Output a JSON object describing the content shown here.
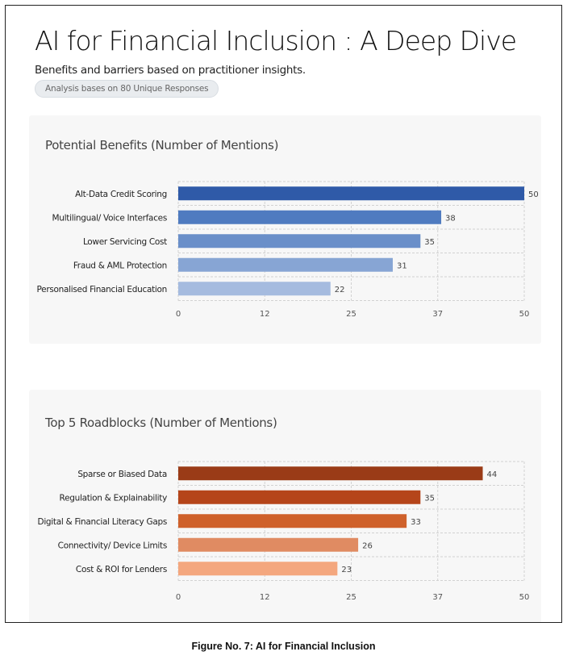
{
  "header": {
    "title": "AI for Financial Inclusion : A Deep Dive",
    "subtitle": "Benefits and barriers based on practitioner insights.",
    "badge": "Analysis bases on 80 Unique Responses"
  },
  "caption": "Figure No. 7: AI for Financial Inclusion",
  "chart_data": [
    {
      "type": "bar",
      "orientation": "horizontal",
      "title": "Potential Benefits (Number of Mentions)",
      "categories": [
        "Alt-Data Credit Scoring",
        "Multilingual/ Voice Interfaces",
        "Lower Servicing Cost",
        "Fraud & AML Protection",
        "Personalised Financial Education"
      ],
      "values": [
        50,
        38,
        35,
        31,
        22
      ],
      "colors": [
        "#2f5aa8",
        "#4f7bc0",
        "#6a8fc9",
        "#87a5d4",
        "#a5bbdf"
      ],
      "xlim": [
        0,
        50
      ],
      "ticks": [
        "0",
        "12",
        "25",
        "37",
        "50"
      ],
      "grid": true
    },
    {
      "type": "bar",
      "orientation": "horizontal",
      "title": "Top 5 Roadblocks (Number of Mentions)",
      "categories": [
        "Sparse or Biased Data",
        "Regulation & Explainability",
        "Digital & Financial Literacy Gaps",
        "Connectivity/ Device Limits",
        "Cost & ROI for Lenders"
      ],
      "values": [
        44,
        35,
        33,
        26,
        23
      ],
      "colors": [
        "#9a3b17",
        "#b5451a",
        "#cf612b",
        "#e08b62",
        "#f4a77e"
      ],
      "xlim": [
        0,
        50
      ],
      "ticks": [
        "0",
        "12",
        "25",
        "37",
        "50"
      ],
      "grid": true
    }
  ]
}
